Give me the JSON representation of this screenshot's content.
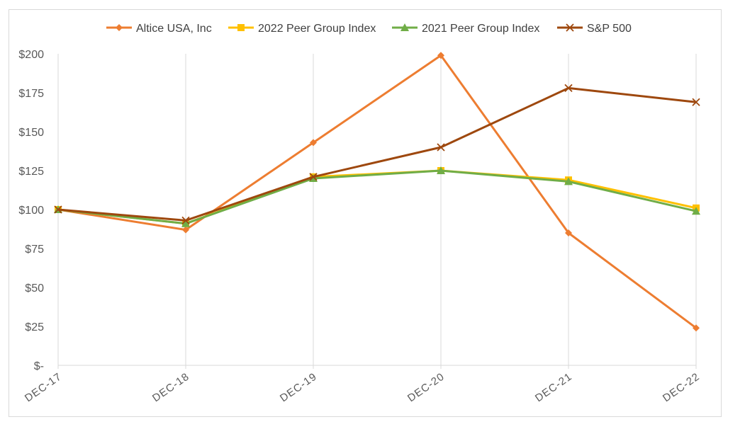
{
  "chart_data": {
    "type": "line",
    "title": "",
    "xlabel": "",
    "ylabel": "",
    "categories": [
      "DEC-17",
      "DEC-18",
      "DEC-19",
      "DEC-20",
      "DEC-21",
      "DEC-22"
    ],
    "ylim": [
      0,
      200
    ],
    "y_ticks": [
      0,
      25,
      50,
      75,
      100,
      125,
      150,
      175,
      200
    ],
    "y_tick_labels": [
      "$-",
      "$25",
      "$50",
      "$75",
      "$100",
      "$125",
      "$150",
      "$175",
      "$200"
    ],
    "grid": "vertical",
    "legend_position": "top",
    "series": [
      {
        "name": "Altice USA, Inc",
        "color": "#ED7D31",
        "marker": "diamond",
        "values": [
          100,
          87,
          143,
          199,
          85,
          24
        ]
      },
      {
        "name": "2022 Peer Group Index",
        "color": "#FFC000",
        "marker": "square",
        "values": [
          100,
          91,
          121,
          125,
          119,
          101
        ]
      },
      {
        "name": "2021 Peer Group Index",
        "color": "#70AD47",
        "marker": "triangle",
        "values": [
          100,
          91,
          120,
          125,
          118,
          99
        ]
      },
      {
        "name": "S&P 500",
        "color": "#9E480E",
        "marker": "x",
        "values": [
          100,
          93,
          121,
          140,
          178,
          169
        ]
      }
    ]
  }
}
